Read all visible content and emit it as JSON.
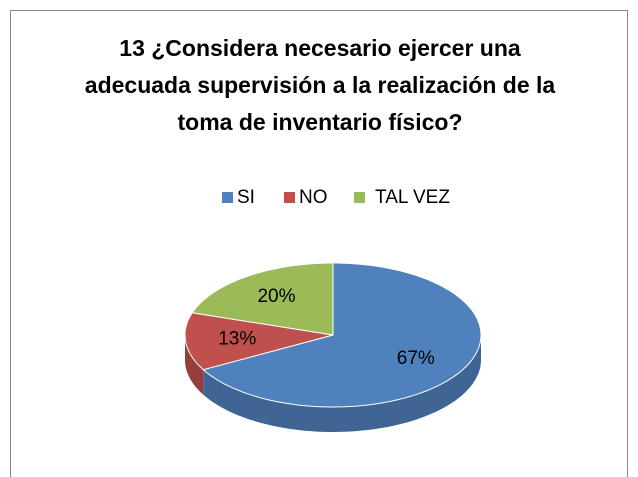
{
  "chart_data": {
    "type": "pie3d",
    "title": "13 ¿Considera necesario ejercer una adecuada supervisión a la realización de la toma de inventario físico?",
    "categories": [
      "SI",
      "NO",
      "TAL VEZ"
    ],
    "values": [
      67,
      13,
      20
    ],
    "value_labels": [
      "67%",
      "13%",
      "20%"
    ],
    "colors": [
      "#4f81bd",
      "#c0504d",
      "#9bbb59"
    ],
    "legend": "top"
  }
}
